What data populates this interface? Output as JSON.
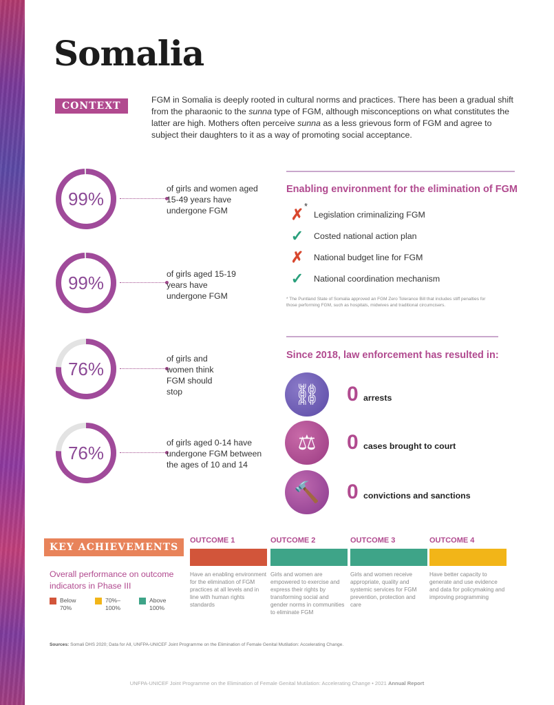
{
  "title": "Somalia",
  "context": {
    "tag": "CONTEXT",
    "text": "FGM in Somalia is deeply rooted in cultural norms and practices. There has been a gradual shift from the pharaonic to the sunna type of FGM, although misconceptions on what constitutes the latter are high. Mothers often perceive sunna as a less grievous form of FGM and agree to subject their daughters to it as a way of promoting social acceptance."
  },
  "stats": [
    {
      "value": "99%",
      "fraction": 0.99,
      "label": "of girls and women aged 15-49 years have undergone FGM"
    },
    {
      "value": "99%",
      "fraction": 0.99,
      "label": "of girls aged 15-19 years have undergone FGM"
    },
    {
      "value": "76%",
      "fraction": 0.76,
      "label": "of girls and women think FGM should stop"
    },
    {
      "value": "76%",
      "fraction": 0.76,
      "label": "of girls aged 0-14 have undergone FGM between the ages of 10 and 14"
    }
  ],
  "enabling": {
    "heading": "Enabling environment for the elimination of FGM",
    "asterisk": "*",
    "items": [
      {
        "label": "Legislation criminalizing FGM",
        "status": "no",
        "mark": "✗"
      },
      {
        "label": "Costed national action plan",
        "status": "yes",
        "mark": "✓"
      },
      {
        "label": "National budget line for FGM",
        "status": "no",
        "mark": "✗"
      },
      {
        "label": "National coordination mechanism",
        "status": "yes",
        "mark": "✓"
      }
    ],
    "footnote": "* The Puntland State of Somalia approved an FGM Zero Tolerance Bill that includes stiff penalties for those performing FGM, such as hospitals, midwives and traditional circumcisers."
  },
  "enforcement": {
    "heading": "Since 2018, law enforcement has resulted in:",
    "items": [
      {
        "icon": "handcuffs-icon",
        "glyph": "⛓",
        "value": "0",
        "label": "arrests"
      },
      {
        "icon": "scales-icon",
        "glyph": "⚖",
        "value": "0",
        "label": "cases brought to court"
      },
      {
        "icon": "gavel-icon",
        "glyph": "🔨",
        "value": "0",
        "label": "convictions and sanctions"
      }
    ]
  },
  "achievements": {
    "tag": "KEY ACHIEVEMENTS",
    "performance": "Overall performance on outcome indicators in Phase III",
    "legend": [
      {
        "label": "Below 70%",
        "color": "#d2553a"
      },
      {
        "label": "70%– 100%",
        "color": "#f2b518"
      },
      {
        "label": "Above 100%",
        "color": "#3ea488"
      }
    ],
    "outcomes": [
      {
        "title": "OUTCOME 1",
        "color": "#d2553a",
        "desc": "Have an enabling environment for the elimination of FGM practices at all levels and in line with human rights standards"
      },
      {
        "title": "OUTCOME 2",
        "color": "#3ea488",
        "desc": "Girls and women are empowered to exercise and express their rights by transforming social and gender norms in communities to eliminate FGM"
      },
      {
        "title": "OUTCOME 3",
        "color": "#3ea488",
        "desc": "Girls and women receive appropriate, quality and systemic services for FGM prevention, protection and care"
      },
      {
        "title": "OUTCOME 4",
        "color": "#f2b518",
        "desc": "Have better capacity to generate and use evidence and data for policymaking and improving programming"
      }
    ]
  },
  "sources": {
    "label": "Sources:",
    "text": "Somali DHS 2020; Data for All, UNFPA-UNICEF Joint Programme on the Elimination of Female Genital Mutilation: Accelerating Change."
  },
  "footer": {
    "text": "UNFPA-UNICEF Joint Programme on the Elimination of Female Genital Mutilation: Accelerating Change  •  2021 ",
    "bold": "Annual Report"
  },
  "colors": {
    "accent": "#b14a8f",
    "ring": "#a04a9a",
    "ring_track": "#e3e3e3"
  }
}
